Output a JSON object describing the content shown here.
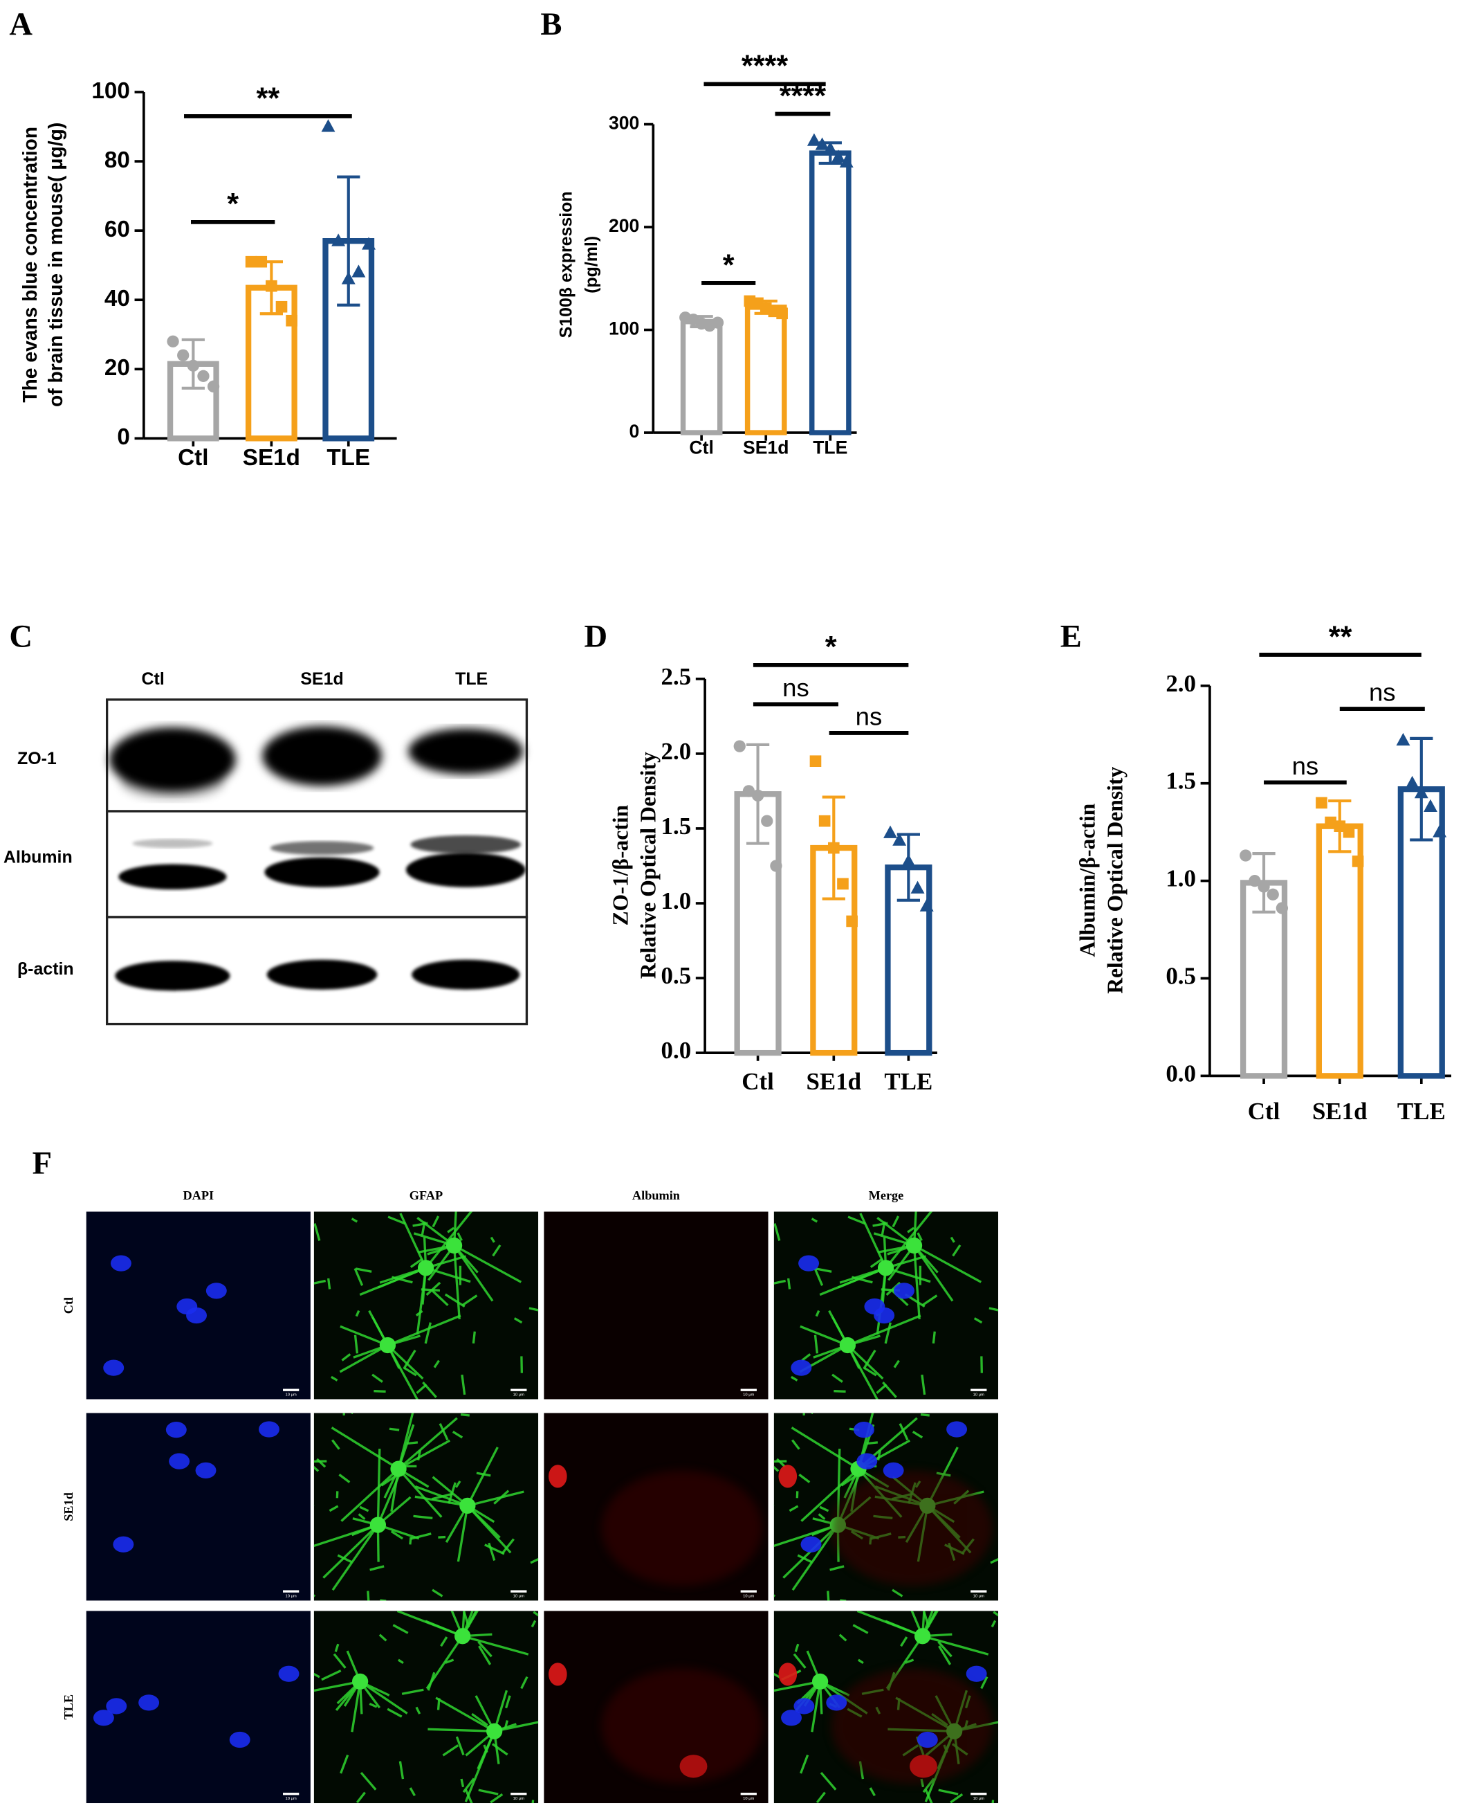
{
  "chart_data": [
    {
      "type": "bar",
      "panel": "A",
      "ylabel": [
        "The evans blue concentration",
        "of brain tissue in mouse( μg/g)"
      ],
      "categories": [
        "Ctl",
        "SE1d",
        "TLE"
      ],
      "colors": [
        "#a6a6a6",
        "#f5a01a",
        "#1c4e8a"
      ],
      "markers": [
        "circle",
        "square",
        "triangle"
      ],
      "values": [
        21.5,
        43.5,
        57
      ],
      "errors": [
        7,
        7.5,
        18.5
      ],
      "points": [
        [
          28,
          24,
          21,
          18,
          15
        ],
        [
          51,
          51,
          44,
          38,
          34
        ],
        [
          90,
          57,
          46,
          48,
          56
        ]
      ],
      "ylim": [
        0,
        100
      ],
      "yticks": [
        0,
        20,
        40,
        60,
        80,
        100
      ],
      "annotations": [
        {
          "text": "*",
          "from": "Ctl",
          "to": "SE1d"
        },
        {
          "text": "**",
          "from": "Ctl",
          "to": "TLE"
        }
      ]
    },
    {
      "type": "bar",
      "panel": "B",
      "ylabel": [
        "S100β expression",
        "(pg/ml)"
      ],
      "categories": [
        "Ctl",
        "SE1d",
        "TLE"
      ],
      "colors": [
        "#a6a6a6",
        "#f5a01a",
        "#1c4e8a"
      ],
      "markers": [
        "circle",
        "square",
        "triangle"
      ],
      "values": [
        108,
        122,
        272
      ],
      "errors": [
        5,
        6,
        10
      ],
      "points": [
        [
          112,
          110,
          106,
          104,
          107
        ],
        [
          128,
          126,
          121,
          118,
          116
        ],
        [
          284,
          280,
          276,
          268,
          263
        ]
      ],
      "ylim": [
        0,
        300
      ],
      "yticks": [
        0,
        100,
        200,
        300
      ],
      "annotations": [
        {
          "text": "*",
          "from": "Ctl",
          "to": "SE1d"
        },
        {
          "text": "****",
          "from": "SE1d",
          "to": "TLE"
        },
        {
          "text": "****",
          "from": "Ctl",
          "to": "TLE"
        }
      ]
    },
    {
      "type": "bar",
      "panel": "D",
      "ylabel": [
        "ZO-1/β-actin",
        "Relative Optical Density"
      ],
      "categories": [
        "Ctl",
        "SE1d",
        "TLE"
      ],
      "colors": [
        "#a6a6a6",
        "#f5a01a",
        "#1c4e8a"
      ],
      "markers": [
        "circle",
        "square",
        "triangle"
      ],
      "values": [
        1.73,
        1.37,
        1.24
      ],
      "errors": [
        0.33,
        0.34,
        0.22
      ],
      "points": [
        [
          2.05,
          1.75,
          1.72,
          1.55,
          1.25
        ],
        [
          1.95,
          1.55,
          1.37,
          1.13,
          0.88
        ],
        [
          1.47,
          1.42,
          1.28,
          1.1,
          0.98
        ]
      ],
      "ylim": [
        0,
        2.5
      ],
      "yticks": [
        {
          "value": 0,
          "label": "0.0"
        },
        0.5,
        {
          "value": 1,
          "label": "1.0"
        },
        1.5,
        {
          "value": 2,
          "label": "2.0"
        },
        2.5
      ],
      "annotations": [
        {
          "text": "ns",
          "from": "Ctl",
          "to": "SE1d"
        },
        {
          "text": "ns",
          "from": "SE1d",
          "to": "TLE"
        },
        {
          "text": "*",
          "from": "Ctl",
          "to": "TLE"
        }
      ]
    },
    {
      "type": "bar",
      "panel": "E",
      "ylabel": [
        "Albumin/β-actin",
        "Relative Optical Density"
      ],
      "categories": [
        "Ctl",
        "SE1d",
        "TLE"
      ],
      "colors": [
        "#a6a6a6",
        "#f5a01a",
        "#1c4e8a"
      ],
      "markers": [
        "circle",
        "square",
        "triangle"
      ],
      "values": [
        0.99,
        1.28,
        1.47
      ],
      "errors": [
        0.15,
        0.13,
        0.26
      ],
      "points": [
        [
          1.13,
          1.0,
          0.97,
          0.93,
          0.86
        ],
        [
          1.4,
          1.3,
          1.28,
          1.25,
          1.1
        ],
        [
          1.72,
          1.5,
          1.45,
          1.38,
          1.25
        ]
      ],
      "ylim": [
        0,
        2
      ],
      "yticks": [
        {
          "value": 0,
          "label": "0.0"
        },
        0.5,
        {
          "value": 1,
          "label": "1.0"
        },
        1.5,
        {
          "value": 2,
          "label": "2.0"
        }
      ],
      "annotations": [
        {
          "text": "ns",
          "from": "Ctl",
          "to": "SE1d"
        },
        {
          "text": "ns",
          "from": "SE1d",
          "to": "TLE"
        },
        {
          "text": "**",
          "from": "Ctl",
          "to": "TLE"
        }
      ]
    }
  ],
  "blot": {
    "panel": "C",
    "lanes": [
      "Ctl",
      "SE1d",
      "TLE"
    ],
    "rows": [
      "ZO-1",
      "Albumin",
      "β-actin"
    ]
  },
  "imaging": {
    "panel": "F",
    "columns": [
      "DAPI",
      "GFAP",
      "Albumin",
      "Merge"
    ],
    "rows": [
      "Ctl",
      "SE1d",
      "TLE"
    ],
    "scale_bar": "10 μm"
  }
}
